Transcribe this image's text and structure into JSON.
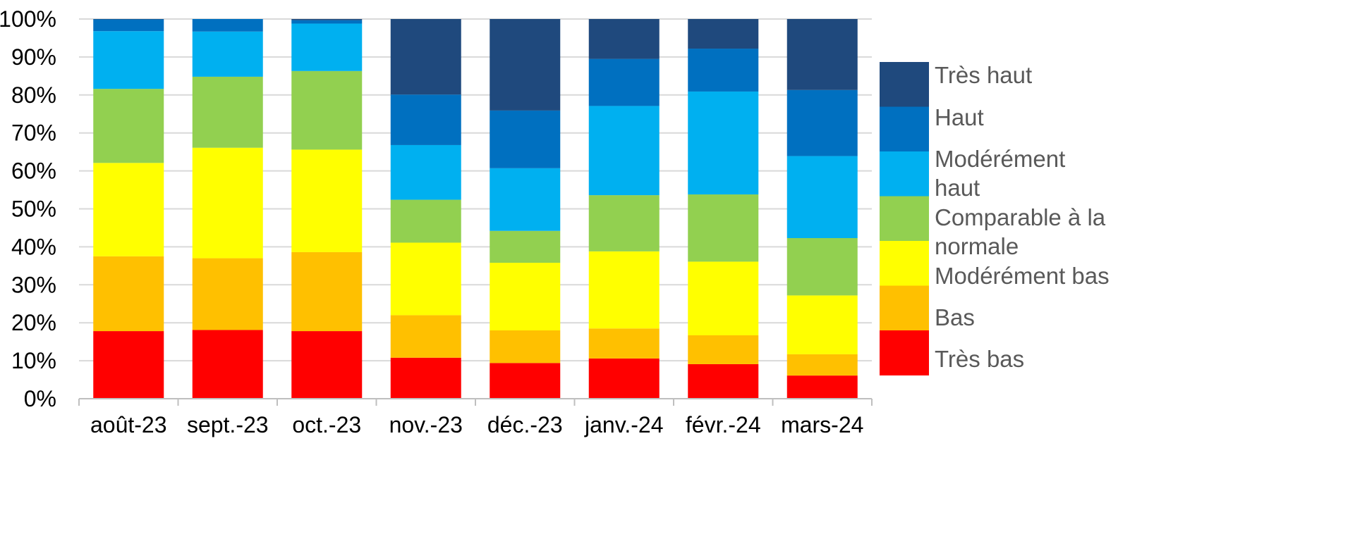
{
  "chart_data": {
    "type": "bar",
    "stacked": true,
    "percent_axis": true,
    "title": "",
    "xlabel": "",
    "ylabel": "",
    "ylim": [
      0,
      100
    ],
    "yticks": [
      "0%",
      "10%",
      "20%",
      "30%",
      "40%",
      "50%",
      "60%",
      "70%",
      "80%",
      "90%",
      "100%"
    ],
    "grid": "horizontal",
    "legend_position": "right",
    "categories": [
      "août-23",
      "sept.-23",
      "oct.-23",
      "nov.-23",
      "déc.-23",
      "janv.-24",
      "févr.-24",
      "mars-24"
    ],
    "series": [
      {
        "name": "Très bas",
        "color": "#ff0000",
        "values": [
          17.8,
          18.1,
          17.8,
          10.8,
          9.4,
          10.6,
          9.1,
          6.1
        ]
      },
      {
        "name": "Bas",
        "color": "#ffc000",
        "values": [
          19.7,
          18.9,
          20.8,
          11.2,
          8.6,
          7.9,
          7.6,
          5.6
        ]
      },
      {
        "name": "Modérément bas",
        "color": "#ffff00",
        "values": [
          24.6,
          29.1,
          27.0,
          19.1,
          17.8,
          20.3,
          19.4,
          15.5
        ]
      },
      {
        "name": "Comparable à la normale",
        "color": "#92d050",
        "values": [
          19.5,
          18.7,
          20.7,
          11.3,
          8.4,
          14.8,
          17.7,
          15.1
        ]
      },
      {
        "name": "Modérément haut",
        "color": "#00b0f0",
        "values": [
          15.2,
          11.9,
          12.5,
          14.4,
          16.5,
          23.5,
          27.1,
          21.6
        ]
      },
      {
        "name": "Haut",
        "color": "#0070c0",
        "values": [
          3.1,
          3.3,
          0.9,
          13.3,
          15.2,
          12.4,
          11.3,
          17.4
        ]
      },
      {
        "name": "Très haut",
        "color": "#1f497d",
        "values": [
          0.1,
          0.0,
          0.3,
          19.9,
          24.1,
          10.5,
          7.8,
          18.7
        ]
      }
    ],
    "legend_lines": [
      [
        "Très haut"
      ],
      [
        "Haut"
      ],
      [
        "Modérément",
        "haut"
      ],
      [
        "Comparable à la",
        "normale"
      ],
      [
        "Modérément bas"
      ],
      [
        "Bas"
      ],
      [
        "Très bas"
      ]
    ]
  }
}
